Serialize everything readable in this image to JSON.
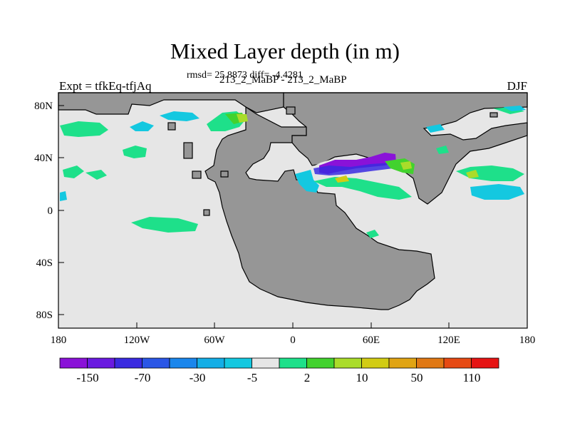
{
  "title": "Mixed Layer depth (in m)",
  "stats_line": "rmsd= 25.8873 diff= -4.4281",
  "experiment_label": "Expt = tfkEq-tfjAq",
  "runs_label": "213_2_MaBP - 213_2_MaBP",
  "season_label": "DJF",
  "axes": {
    "lon_ticks": [
      "180",
      "120W",
      "60W",
      "0",
      "60E",
      "120E",
      "180"
    ],
    "lat_ticks": [
      "80N",
      "40N",
      "0",
      "40S",
      "80S"
    ],
    "lon_range": [
      -180,
      180
    ],
    "lat_range": [
      -90,
      90
    ]
  },
  "colors": {
    "land": "#969696",
    "ocean_background": "#e6e6e6"
  },
  "colorbar": {
    "colors": [
      "#8a12d8",
      "#6a1ae0",
      "#3a2ae0",
      "#2a56e6",
      "#1a86ec",
      "#14aee6",
      "#14c8e0",
      "#e6e6e6",
      "#1ee08a",
      "#42d22e",
      "#aadc2a",
      "#d2cc14",
      "#e0a414",
      "#e07814",
      "#e64a14",
      "#e61414"
    ],
    "labels": [
      "-150",
      "-70",
      "-30",
      "-5",
      "2",
      "10",
      "50",
      "110"
    ]
  }
}
